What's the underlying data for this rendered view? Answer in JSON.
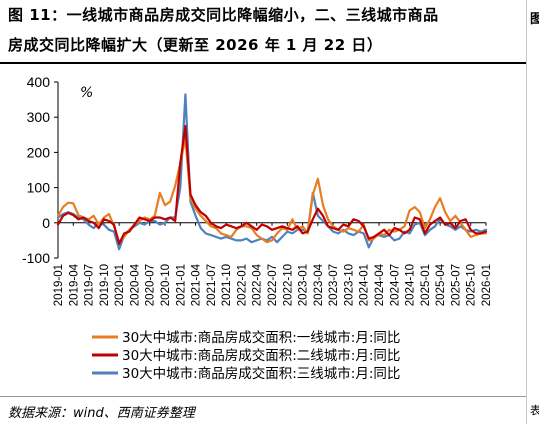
{
  "page": {
    "title_line1": "图 11：一线城市商品房成交同比降幅缩小，二、三线城市商品",
    "title_line2": "房成交同比降幅扩大（更新至 2026 年 1 月 22 日）",
    "source": "数据来源：wind、西南证券整理",
    "right_glyph_top": "图",
    "right_glyph_bottom": "表"
  },
  "chart_data": {
    "type": "line",
    "unit_label": "%",
    "ylim": [
      -100,
      400
    ],
    "yticks": [
      -100,
      0,
      100,
      200,
      300,
      400
    ],
    "grid": false,
    "legend_position": "bottom",
    "x_tick_labels": [
      "2019-01",
      "2019-04",
      "2019-07",
      "2019-10",
      "2020-01",
      "2020-04",
      "2020-07",
      "2020-10",
      "2021-01",
      "2021-04",
      "2021-07",
      "2021-10",
      "2022-01",
      "2022-04",
      "2022-07",
      "2022-10",
      "2023-01",
      "2023-04",
      "2023-07",
      "2023-10",
      "2024-01",
      "2024-04",
      "2024-07",
      "2024-10",
      "2025-01",
      "2025-04",
      "2025-07",
      "2025-10",
      "2026-01"
    ],
    "x": [
      "2019-01",
      "2019-02",
      "2019-03",
      "2019-04",
      "2019-05",
      "2019-06",
      "2019-07",
      "2019-08",
      "2019-09",
      "2019-10",
      "2019-11",
      "2019-12",
      "2020-01",
      "2020-02",
      "2020-03",
      "2020-04",
      "2020-05",
      "2020-06",
      "2020-07",
      "2020-08",
      "2020-09",
      "2020-10",
      "2020-11",
      "2020-12",
      "2021-01",
      "2021-02",
      "2021-03",
      "2021-04",
      "2021-05",
      "2021-06",
      "2021-07",
      "2021-08",
      "2021-09",
      "2021-10",
      "2021-11",
      "2021-12",
      "2022-01",
      "2022-02",
      "2022-03",
      "2022-04",
      "2022-05",
      "2022-06",
      "2022-07",
      "2022-08",
      "2022-09",
      "2022-10",
      "2022-11",
      "2022-12",
      "2023-01",
      "2023-02",
      "2023-03",
      "2023-04",
      "2023-05",
      "2023-06",
      "2023-07",
      "2023-08",
      "2023-09",
      "2023-10",
      "2023-11",
      "2023-12",
      "2024-01",
      "2024-02",
      "2024-03",
      "2024-04",
      "2024-05",
      "2024-06",
      "2024-07",
      "2024-08",
      "2024-09",
      "2024-10",
      "2024-11",
      "2024-12",
      "2025-01",
      "2025-02",
      "2025-03",
      "2025-04",
      "2025-05",
      "2025-06",
      "2025-07",
      "2025-08",
      "2025-09",
      "2025-10",
      "2025-11",
      "2025-12",
      "2026-01"
    ],
    "series": [
      {
        "name": "30大中城市:商品房成交面积:一线城市:月:同比",
        "color": "#E67E22",
        "values": [
          20,
          45,
          57,
          55,
          22,
          15,
          10,
          20,
          -5,
          15,
          25,
          -10,
          -55,
          -40,
          -20,
          -5,
          5,
          15,
          10,
          20,
          85,
          50,
          60,
          105,
          170,
          240,
          70,
          40,
          20,
          5,
          -10,
          -15,
          -30,
          -35,
          -40,
          -20,
          -10,
          -10,
          -15,
          -35,
          -45,
          -55,
          -50,
          -30,
          -15,
          -20,
          10,
          -20,
          -10,
          -30,
          80,
          125,
          50,
          10,
          -10,
          -20,
          -25,
          -15,
          -20,
          -25,
          -5,
          -50,
          -45,
          -30,
          -35,
          -20,
          -25,
          -20,
          -10,
          35,
          45,
          30,
          -15,
          10,
          45,
          70,
          30,
          5,
          20,
          0,
          -20,
          -40,
          -35,
          -30,
          -30
        ]
      },
      {
        "name": "30大中城市:商品房成交面积:二线城市:月:同比",
        "color": "#C00000",
        "values": [
          -5,
          20,
          28,
          22,
          10,
          15,
          5,
          0,
          -15,
          10,
          5,
          -5,
          -60,
          -30,
          -25,
          -5,
          15,
          10,
          5,
          15,
          15,
          10,
          15,
          5,
          170,
          275,
          80,
          50,
          30,
          20,
          0,
          -10,
          -15,
          -5,
          -10,
          -15,
          -10,
          0,
          -10,
          -20,
          -5,
          -10,
          -20,
          -15,
          -10,
          -15,
          -20,
          -10,
          -30,
          -25,
          10,
          40,
          20,
          -10,
          -15,
          -20,
          -5,
          -10,
          10,
          5,
          -10,
          -45,
          -40,
          -30,
          -20,
          -35,
          -15,
          -20,
          -30,
          -20,
          15,
          10,
          -30,
          -5,
          5,
          15,
          -5,
          0,
          -15,
          5,
          10,
          -20,
          -30,
          -30,
          -25
        ]
      },
      {
        "name": "30大中城市:商品房成交面积:三线城市:月:同比",
        "color": "#4F81BD",
        "values": [
          15,
          25,
          30,
          25,
          15,
          10,
          -5,
          -15,
          0,
          -5,
          -20,
          -25,
          -75,
          -35,
          -20,
          -10,
          0,
          -5,
          5,
          5,
          -5,
          0,
          15,
          15,
          100,
          365,
          60,
          20,
          -15,
          -30,
          -35,
          -40,
          -45,
          -40,
          -45,
          -50,
          -50,
          -45,
          -55,
          -50,
          -45,
          -50,
          -40,
          -55,
          -40,
          -25,
          -30,
          -20,
          -20,
          -25,
          85,
          20,
          5,
          -10,
          -25,
          -30,
          -20,
          -30,
          -35,
          -25,
          -30,
          -70,
          -40,
          -35,
          -40,
          -35,
          -50,
          -45,
          -25,
          -30,
          -5,
          0,
          -35,
          -20,
          -10,
          10,
          -5,
          -10,
          -20,
          -10,
          -20,
          -25,
          -20,
          -25,
          -20
        ]
      }
    ]
  }
}
